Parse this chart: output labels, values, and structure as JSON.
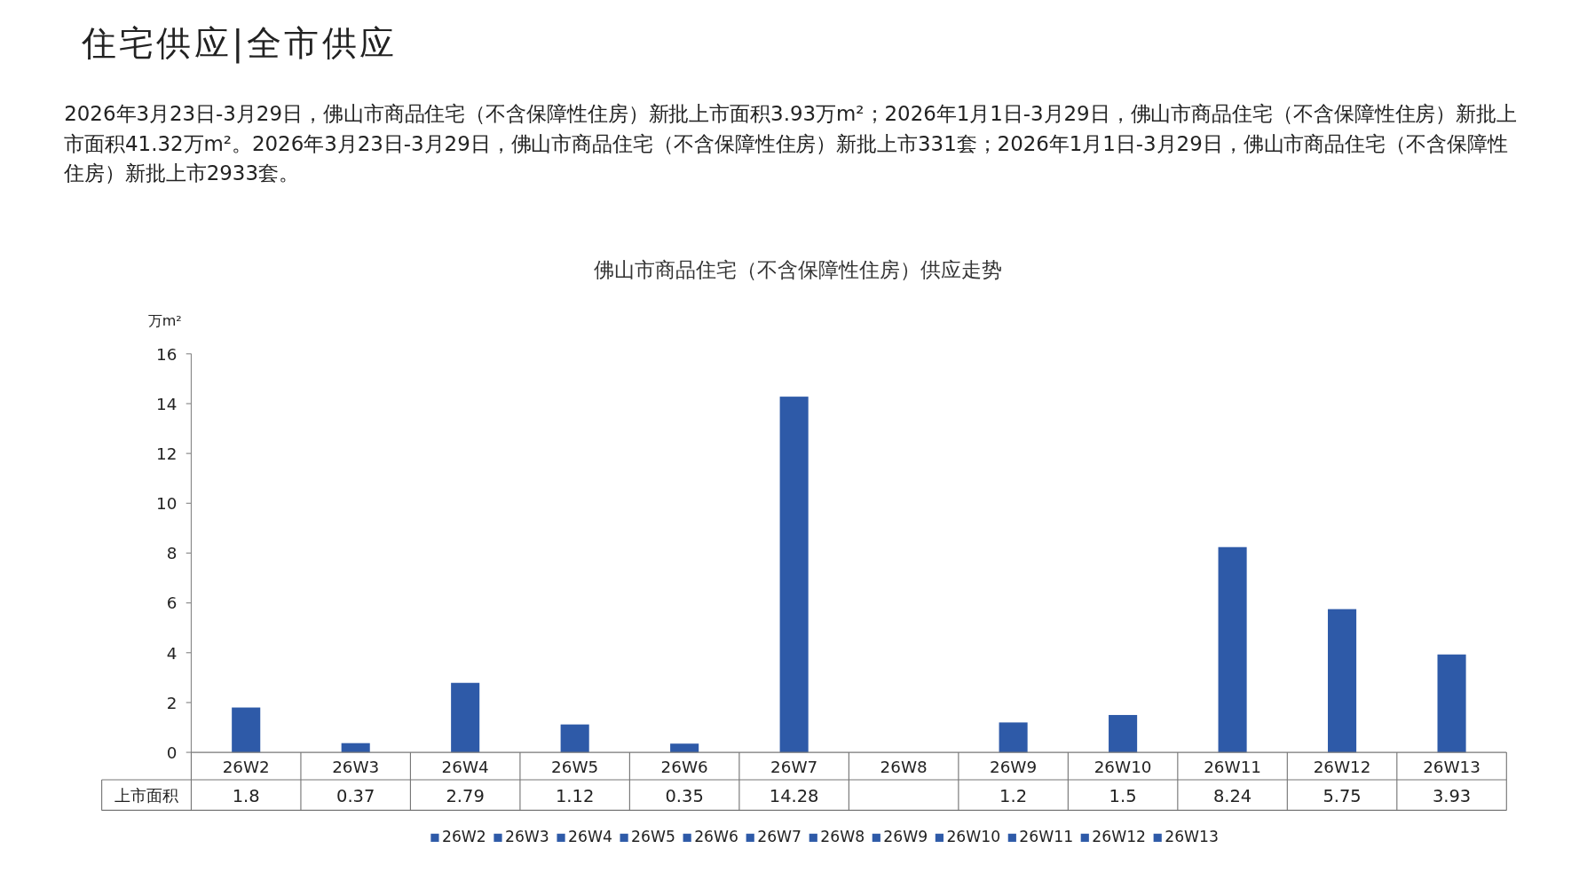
{
  "chart_data": {
    "type": "bar",
    "title": "佛山市商品住宅（不含保障性住房）供应走势",
    "annotations": [
      "住宅供应|全市供应",
      "2026年3月23日-3月29日，佛山市商品住宅（不含保障性住房）新批上市面积3.93万m²；2026年1月1日-3月29日，佛山市商品住宅（不含保障性住房）新批上市面积41.32万m²。2026年3月23日-3月29日，佛山市商品住宅（不含保障性住房）新批上市331套；2026年1月1日-3月29日，佛山市商品住宅（不含保障性住房）新批上市2933套。"
    ],
    "ylabel": "万m²",
    "categories": [
      "26W2",
      "26W3",
      "26W4",
      "26W5",
      "26W6",
      "26W7",
      "26W8",
      "26W9",
      "26W10",
      "26W11",
      "26W12",
      "26W13"
    ],
    "series": [
      {
        "name": "上市面积",
        "color": "#2e5aa8",
        "values": [
          1.8,
          0.37,
          2.79,
          1.12,
          0.35,
          14.28,
          null,
          1.2,
          1.5,
          8.24,
          5.75,
          3.93
        ]
      }
    ],
    "ylim": [
      0,
      16
    ],
    "yticks": [
      0,
      2,
      4,
      6,
      8,
      10,
      12,
      14,
      16
    ],
    "data_labels": true,
    "legend": "bottom"
  }
}
